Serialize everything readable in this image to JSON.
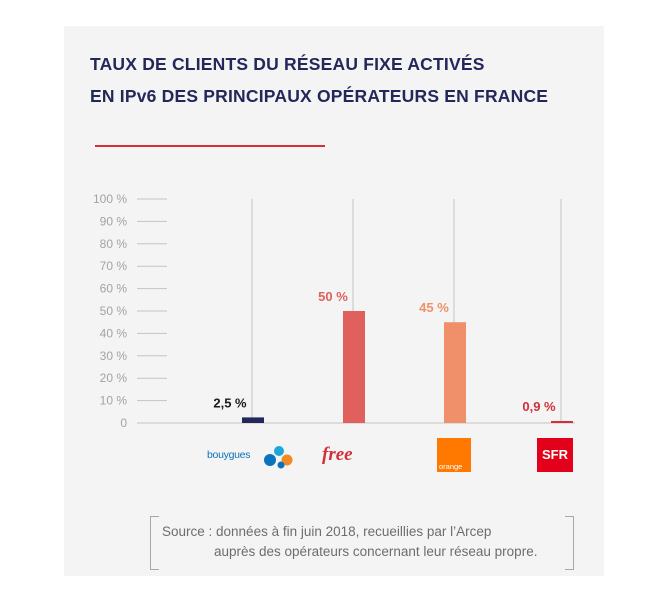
{
  "title": {
    "line1": "TAUX DE CLIENTS DU RÉSEAU FIXE ACTIVÉS",
    "line2": "EN IPv6 DES PRINCIPAUX OPÉRATEURS EN FRANCE"
  },
  "colors": {
    "title": "#23285a",
    "accent": "#d4303a",
    "bouygues": "#23285a",
    "free": "#e0605e",
    "orange": "#f0906a",
    "sfr": "#d4303a",
    "axis_label": "#a3a3a3"
  },
  "chart_data": {
    "type": "bar",
    "title": "TAUX DE CLIENTS DU RÉSEAU FIXE ACTIVÉS EN IPv6 DES PRINCIPAUX OPÉRATEURS EN FRANCE",
    "categories": [
      "Bouygues",
      "Free",
      "Orange",
      "SFR"
    ],
    "values": [
      2.5,
      50,
      45,
      0.9
    ],
    "value_labels": [
      "2,5 %",
      "50 %",
      "45 %",
      "0,9 %"
    ],
    "label_colors": [
      "#1a1a1a",
      "#e0605e",
      "#f0906a",
      "#d4303a"
    ],
    "bar_colors": [
      "#23285a",
      "#e0605e",
      "#f0906a",
      "#d4303a"
    ],
    "ylim": [
      0,
      100
    ],
    "y_ticks": [
      0,
      10,
      20,
      30,
      40,
      50,
      60,
      70,
      80,
      90,
      100
    ],
    "y_tick_labels": [
      "0",
      "10 %",
      "20 %",
      "30 %",
      "40 %",
      "50 %",
      "60 %",
      "70 %",
      "80 %",
      "90 %",
      "100 %"
    ],
    "xlabel": "",
    "ylabel": ""
  },
  "logos": {
    "bouygues": "bouygues",
    "free": "free",
    "orange": "orange",
    "sfr": "SFR"
  },
  "source": {
    "line1": "Source : données à fin juin 2018, recueillies par l’Arcep",
    "line2": "auprès des opérateurs concernant leur réseau propre."
  }
}
